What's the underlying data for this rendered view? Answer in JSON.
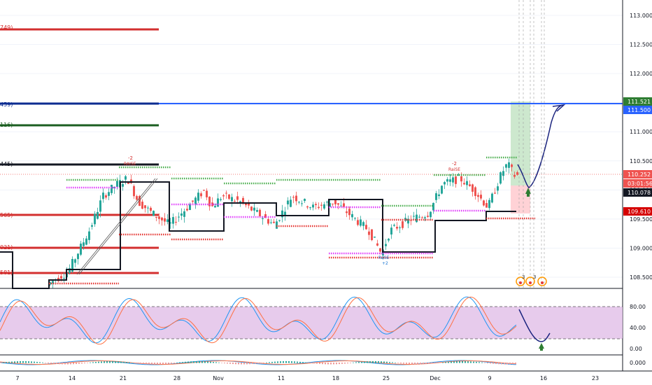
{
  "colors": {
    "candle_up": "#26a69a",
    "candle_down": "#ef5350",
    "blue_line": "#2962ff",
    "red_line": "#d32f2f",
    "green_line": "#1b5e20",
    "signal_green": "#4caf50",
    "signal_red": "#e53935",
    "magenta": "#e040fb",
    "stoch_k": "#2196f3",
    "stoch_d": "#ff7043",
    "stoch_band": "#e1bee7",
    "arrow_green": "#2e7d32"
  },
  "price_axis": {
    "ticks": [
      "113.000",
      "112.500",
      "112.000",
      "111.500",
      "111.000",
      "110.500",
      "110.000",
      "109.500",
      "109.000",
      "108.500"
    ],
    "badges": [
      {
        "label": "111.521",
        "color": "#2e7d32"
      },
      {
        "label": "111.500",
        "color": "#2962ff"
      },
      {
        "label": "110.252",
        "color": "#ef5350"
      },
      {
        "label": "03:01:56",
        "color": "#ef5350"
      },
      {
        "label": "110.078",
        "color": "#131722"
      },
      {
        "label": "109.610",
        "color": "#d50000"
      }
    ]
  },
  "stoch_axis": {
    "ticks": [
      "80.00",
      "40.00",
      "0.00"
    ]
  },
  "macd_axis": {
    "ticks": [
      "0.000"
    ]
  },
  "time_axis": {
    "ticks": [
      "7",
      "14",
      "21",
      "28",
      "Nov",
      "11",
      "18",
      "25",
      "Dec",
      "9",
      "16",
      "23"
    ]
  },
  "level_labels": [
    "749)",
    "459)",
    "116)",
    "445)",
    "565)",
    "021)",
    "581)"
  ],
  "annotations": {
    "marker_top_left": "-2",
    "marker_left_text": "RAISE",
    "marker_right": "-2",
    "marker_right_text": "RaiSE",
    "marker_bottom": "+2",
    "marker_bottom_text": "RaSE",
    "time_marker_1": "3",
    "time_marker_2": "3"
  }
}
